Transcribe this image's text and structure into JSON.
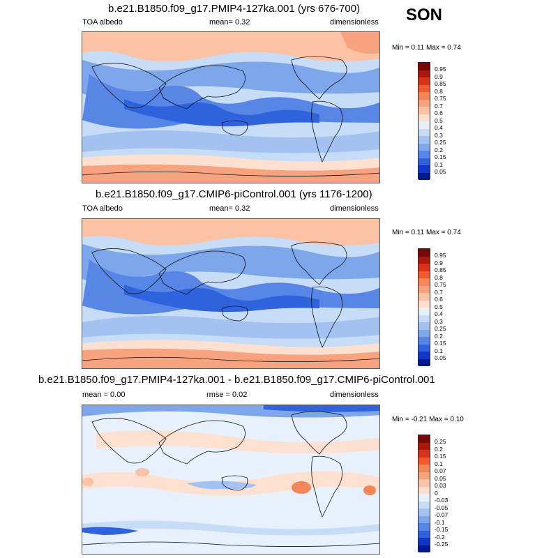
{
  "season": "SON",
  "panels": [
    {
      "title": "b.e21.B1850.f09_g17.PMIP4-127ka.001 (yrs 676-700)",
      "left_label": "TOA albedo",
      "mid_label": "mean=   0.32",
      "right_label": "dimensionless",
      "minmax": "Min =   0.11 Max =   0.74",
      "colorbar_labels": [
        "0.95",
        "0.9",
        "0.85",
        "0.8",
        "0.75",
        "0.7",
        "0.6",
        "0.5",
        "0.4",
        "0.3",
        "0.25",
        "0.2",
        "0.15",
        "0.1",
        "0.05"
      ]
    },
    {
      "title": "b.e21.B1850.f09_g17.CMIP6-piControl.001 (yrs 1176-1200)",
      "left_label": "TOA albedo",
      "mid_label": "mean=   0.32",
      "right_label": "dimensionless",
      "minmax": "Min =   0.11 Max =   0.74",
      "colorbar_labels": [
        "0.95",
        "0.9",
        "0.85",
        "0.8",
        "0.75",
        "0.7",
        "0.6",
        "0.5",
        "0.4",
        "0.3",
        "0.25",
        "0.2",
        "0.15",
        "0.1",
        "0.05"
      ]
    },
    {
      "title": "b.e21.B1850.f09_g17.PMIP4-127ka.001 - b.e21.B1850.f09_g17.CMIP6-piControl.001",
      "left_label": "mean =   0.00",
      "mid_label": "rmse =   0.02",
      "right_label": "dimensionless",
      "minmax": "Min =  -0.21 Max =   0.10",
      "colorbar_labels": [
        "0.25",
        "0.2",
        "0.15",
        "0.1",
        "0.07",
        "0.05",
        "0.03",
        "0",
        "-0.03",
        "-0.05",
        "-0.07",
        "-0.1",
        "-0.15",
        "-0.2",
        "-0.25"
      ]
    }
  ],
  "colors": {
    "abs_scale": [
      "#7a0a0a",
      "#a8180f",
      "#d8331a",
      "#f05a2c",
      "#f5865a",
      "#f8a37f",
      "#fbc2a5",
      "#fde0d0",
      "#e8f0fb",
      "#c7dcf7",
      "#a4c2f1",
      "#7ea6eb",
      "#5786e6",
      "#2f62dd",
      "#1335c7",
      "#02198f"
    ],
    "diff_scale": [
      "#7a0a0a",
      "#a8180f",
      "#d8331a",
      "#f05a2c",
      "#f5865a",
      "#f8a37f",
      "#fbc2a5",
      "#fde0d0",
      "#e8f0fb",
      "#c7dcf7",
      "#a4c2f1",
      "#7ea6eb",
      "#5786e6",
      "#2f62dd",
      "#1335c7",
      "#02198f"
    ]
  }
}
